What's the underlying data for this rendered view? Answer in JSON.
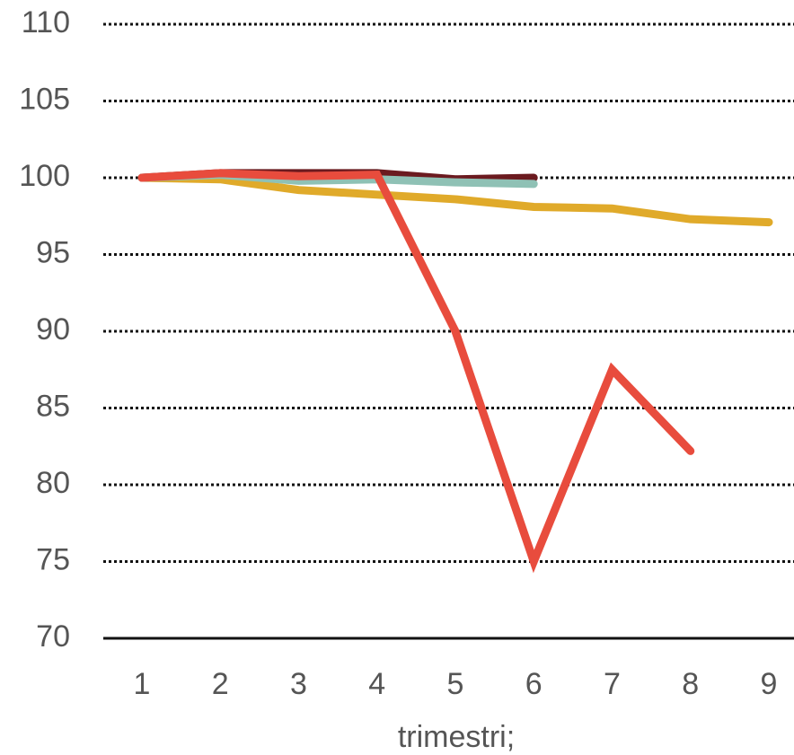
{
  "chart_data": {
    "type": "line",
    "x_label": "trimestri;",
    "categories": [
      "1",
      "2",
      "3",
      "4",
      "5",
      "6",
      "7",
      "8",
      "9"
    ],
    "series": [
      {
        "color": "#e0aa2a",
        "values": [
          100,
          99.9,
          99.2,
          98.9,
          98.6,
          98.1,
          98.0,
          97.3,
          97.1
        ]
      },
      {
        "color": "#6b1a1f",
        "values": [
          100,
          100.3,
          100.3,
          100.3,
          99.9,
          100.0,
          null,
          null,
          null
        ]
      },
      {
        "color": "#8fc1b5",
        "values": [
          100,
          100.2,
          99.8,
          99.9,
          99.7,
          99.6,
          null,
          null,
          null
        ]
      },
      {
        "color": "#e84c3d",
        "values": [
          100,
          100.3,
          100.1,
          100.2,
          90.0,
          75.0,
          87.5,
          82.2,
          null
        ]
      }
    ],
    "ylim": [
      70,
      110
    ],
    "yticks": [
      70,
      75,
      80,
      85,
      90,
      95,
      100,
      105,
      110
    ],
    "grid": true
  }
}
